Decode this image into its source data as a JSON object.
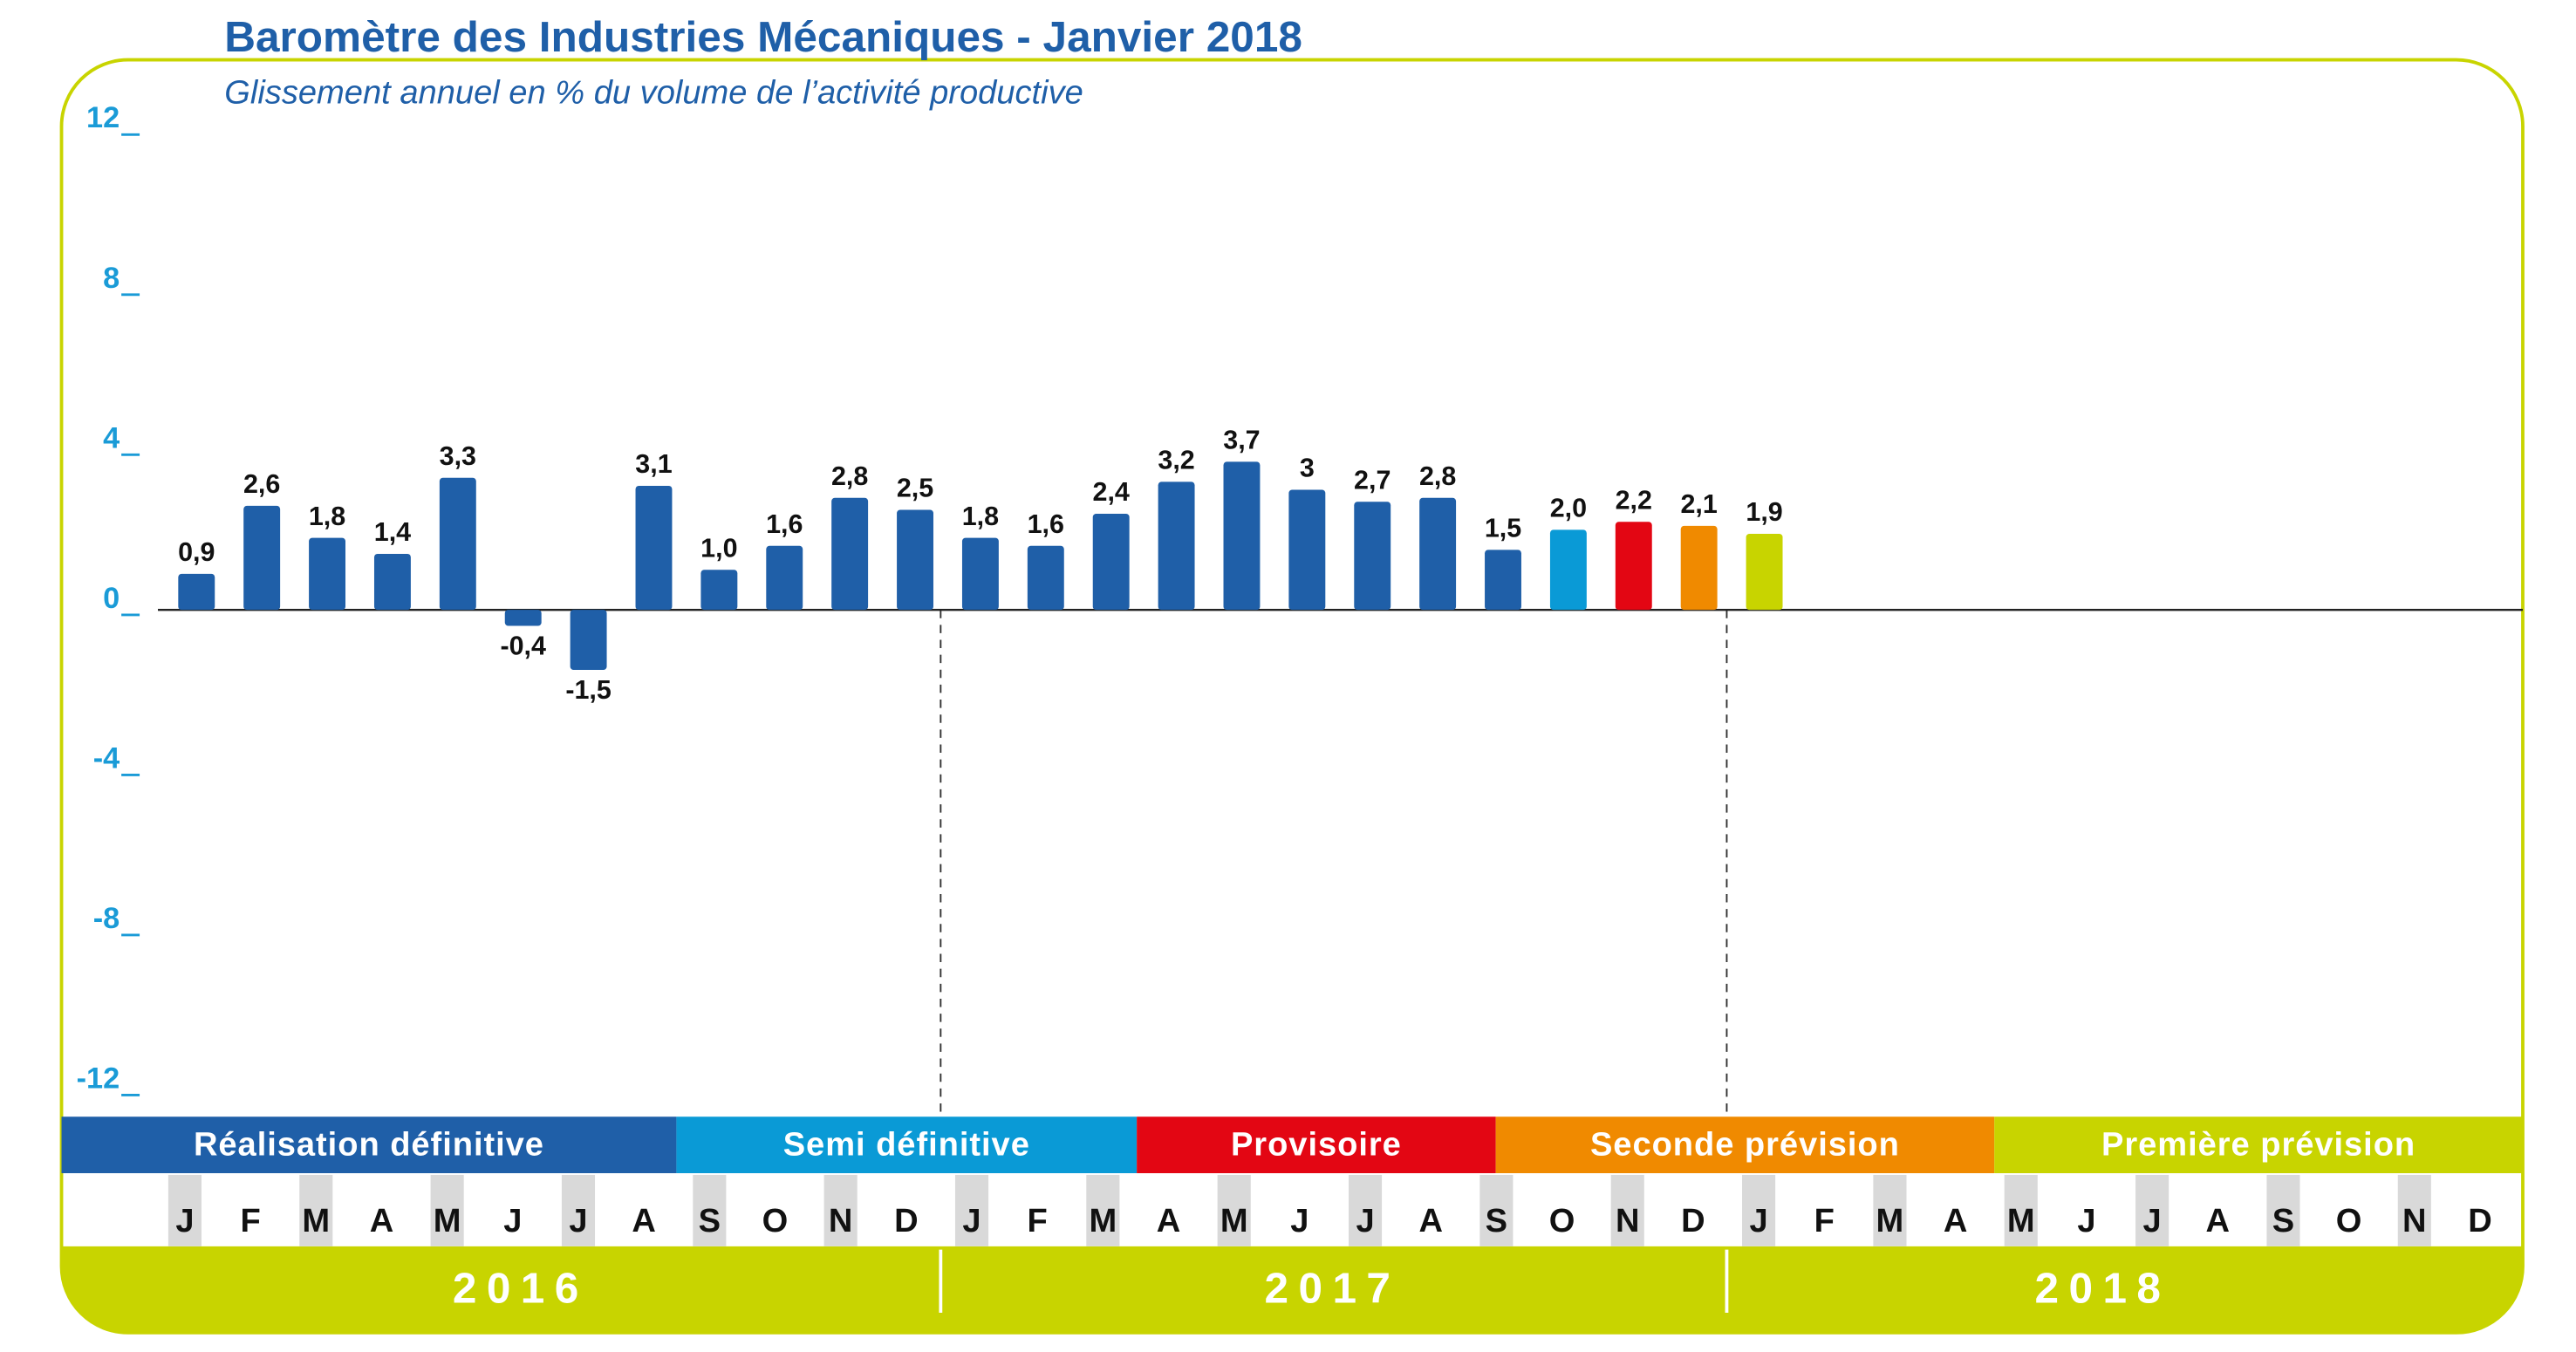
{
  "chart_data": {
    "type": "bar",
    "title": "Baromètre des Industries Mécaniques - Janvier 2018",
    "subtitle": "Glissement annuel en % du volume de l’activité productive",
    "categories": [
      "J",
      "F",
      "M",
      "A",
      "M",
      "J",
      "J",
      "A",
      "S",
      "O",
      "N",
      "D",
      "J",
      "F",
      "M",
      "A",
      "M",
      "J",
      "J",
      "A",
      "S",
      "O",
      "N",
      "D",
      "J",
      "F",
      "M",
      "A",
      "M",
      "J",
      "J",
      "A",
      "S",
      "O",
      "N",
      "D"
    ],
    "values": [
      0.9,
      2.6,
      1.8,
      1.4,
      3.3,
      -0.4,
      -1.5,
      3.1,
      1.0,
      1.6,
      2.8,
      2.5,
      1.8,
      1.6,
      2.4,
      3.2,
      3.7,
      3,
      2.7,
      2.8,
      1.5,
      2.0,
      2.2,
      2.1,
      1.9,
      null,
      null,
      null,
      null,
      null,
      null,
      null,
      null,
      null,
      null,
      null
    ],
    "value_labels": [
      "0,9",
      "2,6",
      "1,8",
      "1,4",
      "3,3",
      "-0,4",
      "-1,5",
      "3,1",
      "1,0",
      "1,6",
      "2,8",
      "2,5",
      "1,8",
      "1,6",
      "2,4",
      "3,2",
      "3,7",
      "3",
      "2,7",
      "2,8",
      "1,5",
      "2,0",
      "2,2",
      "2,1",
      "1,9",
      null,
      null,
      null,
      null,
      null,
      null,
      null,
      null,
      null,
      null,
      null
    ],
    "colors": [
      "#1f5fa8",
      "#1f5fa8",
      "#1f5fa8",
      "#1f5fa8",
      "#1f5fa8",
      "#1f5fa8",
      "#1f5fa8",
      "#1f5fa8",
      "#1f5fa8",
      "#1f5fa8",
      "#1f5fa8",
      "#1f5fa8",
      "#1f5fa8",
      "#1f5fa8",
      "#1f5fa8",
      "#1f5fa8",
      "#1f5fa8",
      "#1f5fa8",
      "#1f5fa8",
      "#1f5fa8",
      "#1f5fa8",
      "#0a9ad6",
      "#e30613",
      "#f08a00",
      "#c8d400",
      null,
      null,
      null,
      null,
      null,
      null,
      null,
      null,
      null,
      null,
      null
    ],
    "ylim": [
      -12,
      12
    ],
    "yticks": [
      -12,
      -8,
      -4,
      0,
      4,
      8,
      12
    ],
    "bands": [
      {
        "name": "Réalisation définitive",
        "color": "#1f5fa8"
      },
      {
        "name": "Semi définitive",
        "color": "#0a9ad6"
      },
      {
        "name": "Provisoire",
        "color": "#e30613"
      },
      {
        "name": "Seconde prévision",
        "color": "#f08a00"
      },
      {
        "name": "Première prévision",
        "color": "#c8d400"
      }
    ],
    "years": [
      "2016",
      "2017",
      "2018"
    ]
  }
}
